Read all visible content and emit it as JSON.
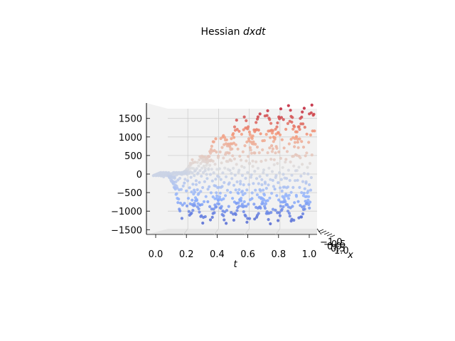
{
  "chart_data": {
    "type": "scatter",
    "projection": "3d",
    "title_prefix": "Hessian ",
    "title_math": "dxdt",
    "xlabel": "t",
    "zlabel": "x",
    "x_ticks": [
      "0.0",
      "0.2",
      "0.4",
      "0.6",
      "0.8",
      "1.0"
    ],
    "y_ticks": [
      "1500",
      "1000",
      "500",
      "0",
      "−1000",
      "−1500"
    ],
    "y_tick_values": [
      1500,
      1000,
      500,
      0,
      -1000,
      -1500
    ],
    "y_tick_neg500_label": "−500",
    "depth_ticks": [
      "−1.0",
      "−0.5",
      "0.0",
      "0.5",
      "1.0"
    ],
    "xlim": [
      0.0,
      1.0
    ],
    "ylim": [
      -1550,
      1950
    ],
    "colormap": "coolwarm",
    "grid": true,
    "envelope": {
      "peaks_t": [
        0.49,
        0.62,
        0.77,
        0.92
      ],
      "peak_values": [
        1400,
        1650,
        1800,
        1850
      ],
      "trough_t": [
        0.34,
        0.47,
        0.62,
        0.77,
        0.92
      ],
      "trough_values": [
        -1300,
        -1400,
        -1400,
        -1400,
        -1400
      ]
    }
  }
}
